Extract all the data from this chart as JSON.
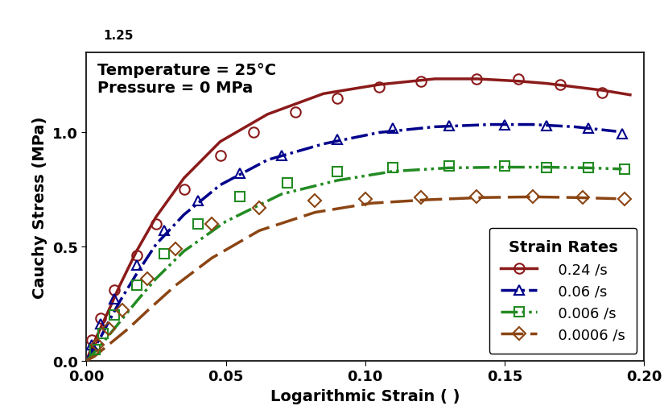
{
  "title_text": "Temperature = 25°C\nPressure = 0 MPa",
  "xlabel": "Logarithmic Strain ( )",
  "ylabel": "Cauchy Stress (MPa)",
  "xlim": [
    0.0,
    0.2
  ],
  "ylim": [
    0.0,
    1.35
  ],
  "yticks": [
    0.0,
    0.5,
    1.0
  ],
  "xticks": [
    0.0,
    0.05,
    0.1,
    0.15,
    0.2
  ],
  "legend_title": "Strain Rates",
  "series": [
    {
      "label": "0.24 /s",
      "color": "#8B1A1A",
      "line_style": "-",
      "marker": "o",
      "curve_x": [
        0.0,
        0.002,
        0.005,
        0.008,
        0.012,
        0.018,
        0.025,
        0.035,
        0.048,
        0.065,
        0.085,
        0.105,
        0.125,
        0.14,
        0.155,
        0.165,
        0.175,
        0.185,
        0.195
      ],
      "curve_y": [
        0.0,
        0.06,
        0.14,
        0.22,
        0.33,
        0.48,
        0.63,
        0.8,
        0.96,
        1.08,
        1.17,
        1.21,
        1.235,
        1.235,
        1.225,
        1.215,
        1.2,
        1.185,
        1.165
      ],
      "data_x": [
        0.002,
        0.005,
        0.01,
        0.018,
        0.025,
        0.035,
        0.048,
        0.06,
        0.075,
        0.09,
        0.105,
        0.12,
        0.14,
        0.155,
        0.17,
        0.185
      ],
      "data_y": [
        0.09,
        0.185,
        0.31,
        0.46,
        0.6,
        0.75,
        0.9,
        1.0,
        1.09,
        1.15,
        1.2,
        1.225,
        1.235,
        1.235,
        1.21,
        1.175
      ]
    },
    {
      "label": "0.06 /s",
      "color": "#00008B",
      "line_style": "-.",
      "marker": "^",
      "curve_x": [
        0.0,
        0.002,
        0.005,
        0.008,
        0.012,
        0.018,
        0.025,
        0.035,
        0.048,
        0.065,
        0.085,
        0.105,
        0.125,
        0.145,
        0.16,
        0.175,
        0.19
      ],
      "curve_y": [
        0.0,
        0.04,
        0.1,
        0.17,
        0.26,
        0.38,
        0.51,
        0.64,
        0.77,
        0.88,
        0.95,
        1.0,
        1.025,
        1.035,
        1.035,
        1.025,
        1.005
      ],
      "data_x": [
        0.002,
        0.005,
        0.01,
        0.018,
        0.028,
        0.04,
        0.055,
        0.07,
        0.09,
        0.11,
        0.13,
        0.15,
        0.165,
        0.18,
        0.192
      ],
      "data_y": [
        0.07,
        0.16,
        0.27,
        0.42,
        0.57,
        0.7,
        0.82,
        0.9,
        0.97,
        1.02,
        1.03,
        1.035,
        1.03,
        1.02,
        0.995
      ]
    },
    {
      "label": "0.006 /s",
      "color": "#228B22",
      "line_style": "dashdotdot",
      "marker": "s",
      "curve_x": [
        0.0,
        0.002,
        0.005,
        0.008,
        0.012,
        0.018,
        0.025,
        0.035,
        0.05,
        0.07,
        0.09,
        0.11,
        0.13,
        0.15,
        0.165,
        0.18,
        0.192
      ],
      "curve_y": [
        0.0,
        0.025,
        0.065,
        0.11,
        0.17,
        0.26,
        0.36,
        0.48,
        0.61,
        0.73,
        0.79,
        0.83,
        0.845,
        0.848,
        0.848,
        0.845,
        0.84
      ],
      "data_x": [
        0.003,
        0.006,
        0.01,
        0.018,
        0.028,
        0.04,
        0.055,
        0.072,
        0.09,
        0.11,
        0.13,
        0.15,
        0.165,
        0.18,
        0.193
      ],
      "data_y": [
        0.05,
        0.12,
        0.2,
        0.33,
        0.47,
        0.6,
        0.72,
        0.78,
        0.83,
        0.845,
        0.852,
        0.852,
        0.848,
        0.845,
        0.84
      ]
    },
    {
      "label": "0.0006 /s",
      "color": "#8B4513",
      "line_style": "--",
      "marker": "D",
      "curve_x": [
        0.0,
        0.003,
        0.006,
        0.01,
        0.015,
        0.022,
        0.032,
        0.045,
        0.062,
        0.082,
        0.102,
        0.122,
        0.142,
        0.16,
        0.175,
        0.19
      ],
      "curve_y": [
        0.0,
        0.02,
        0.05,
        0.09,
        0.14,
        0.22,
        0.33,
        0.45,
        0.57,
        0.65,
        0.69,
        0.705,
        0.715,
        0.718,
        0.715,
        0.71
      ],
      "data_x": [
        0.004,
        0.008,
        0.013,
        0.022,
        0.032,
        0.045,
        0.062,
        0.082,
        0.1,
        0.12,
        0.14,
        0.16,
        0.178,
        0.193
      ],
      "data_y": [
        0.07,
        0.14,
        0.22,
        0.36,
        0.49,
        0.6,
        0.67,
        0.7,
        0.71,
        0.715,
        0.718,
        0.718,
        0.715,
        0.71
      ]
    }
  ],
  "background_color": "#ffffff",
  "legend_fontsize": 13,
  "axis_label_fontsize": 14,
  "tick_fontsize": 13,
  "annotation_fontsize": 14
}
